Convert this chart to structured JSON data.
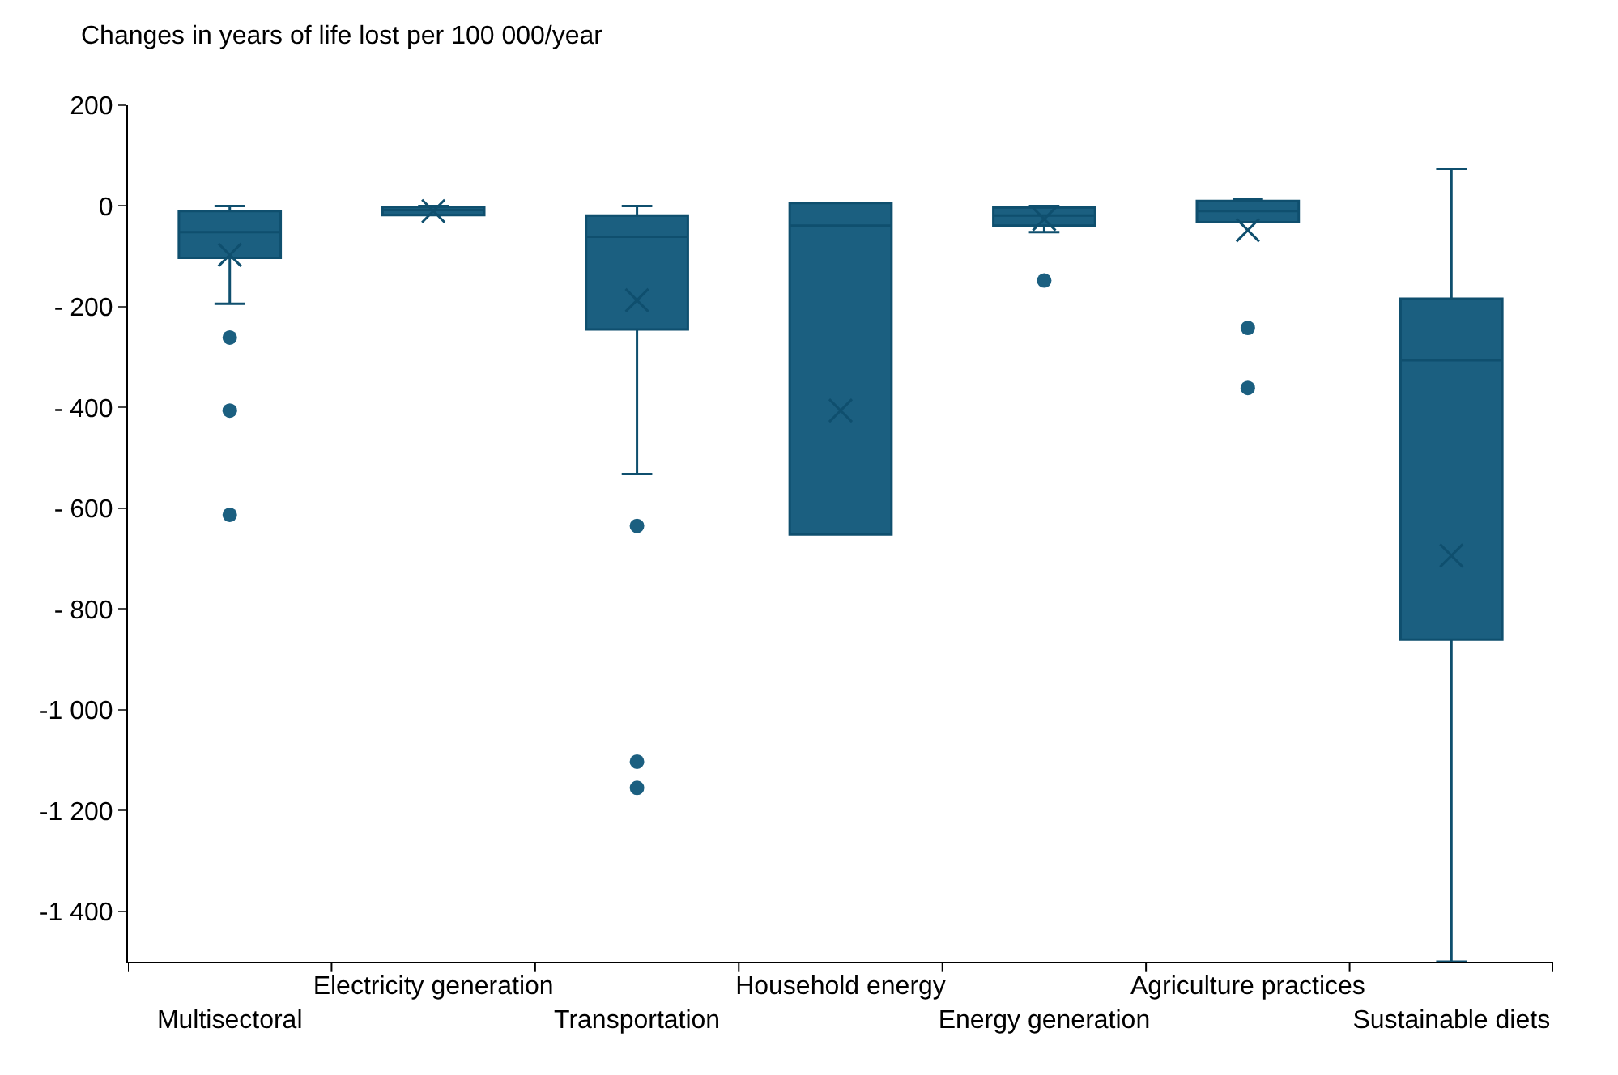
{
  "chart_data": {
    "type": "box",
    "ylabel": "Changes in years of life lost per 100 000/year",
    "categories": [
      "Multisectoral",
      "Electricity generation",
      "Transportation",
      "Household energy",
      "Energy generation",
      "Agriculture practices",
      "Sustainable diets"
    ],
    "color": "#1b5f80",
    "boxes": [
      {
        "low": -194,
        "q1": -103,
        "median": -52,
        "q3": -10,
        "high": 0,
        "mean": -97,
        "outliers": [
          -261,
          -406,
          -613
        ]
      },
      {
        "low": -18,
        "q1": -18,
        "median": -8,
        "q3": -2,
        "high": 0,
        "mean": -10
      },
      {
        "low": -532,
        "q1": -245,
        "median": -61,
        "q3": -19,
        "high": 0,
        "mean": -187,
        "outliers": [
          -635,
          -1103,
          -1155
        ]
      },
      {
        "low": -652,
        "q1": -652,
        "median": -39,
        "q3": 6,
        "high": 6,
        "mean": -406
      },
      {
        "low": -52,
        "q1": -39,
        "median": -19,
        "q3": -3,
        "high": 0,
        "mean": -26,
        "outliers": [
          -148
        ]
      },
      {
        "low": -32,
        "q1": -32,
        "median": -10,
        "q3": 10,
        "high": 13,
        "mean": -48,
        "outliers": [
          -242,
          -361
        ]
      },
      {
        "low": -1500,
        "q1": -861,
        "median": -306,
        "q3": -184,
        "high": 74,
        "mean": -694
      }
    ],
    "ylim": [
      -1500,
      200
    ],
    "yticks": [
      200,
      0,
      {
        "value": -200,
        "label": "- 200"
      },
      {
        "value": -400,
        "label": "- 400"
      },
      {
        "value": -600,
        "label": "- 600"
      },
      {
        "value": -800,
        "label": "- 800"
      },
      {
        "value": -1000,
        "label": "-1 000"
      },
      {
        "value": -1200,
        "label": "-1 200"
      },
      {
        "value": -1400,
        "label": "-1 400"
      }
    ],
    "grid": false
  }
}
